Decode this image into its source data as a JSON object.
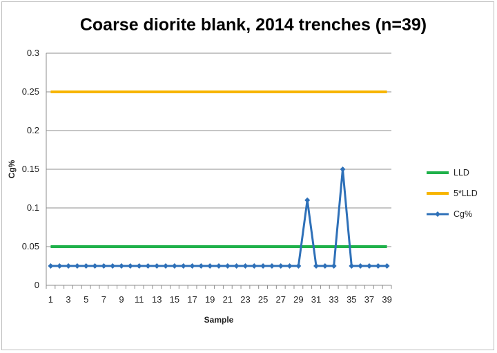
{
  "chart_data": {
    "type": "line",
    "title": "Coarse diorite blank, 2014 trenches (n=39)",
    "xlabel": "Sample",
    "ylabel": "Cg%",
    "ylim": [
      0,
      0.3
    ],
    "y_ticks": [
      "0",
      "0.05",
      "0.1",
      "0.15",
      "0.2",
      "0.25",
      "0.3"
    ],
    "x_tick_labels": [
      "1",
      "3",
      "5",
      "7",
      "9",
      "11",
      "13",
      "15",
      "17",
      "19",
      "21",
      "23",
      "25",
      "27",
      "29",
      "31",
      "33",
      "35",
      "37",
      "39"
    ],
    "grid": true,
    "legend_position": "right",
    "x": [
      1,
      2,
      3,
      4,
      5,
      6,
      7,
      8,
      9,
      10,
      11,
      12,
      13,
      14,
      15,
      16,
      17,
      18,
      19,
      20,
      21,
      22,
      23,
      24,
      25,
      26,
      27,
      28,
      29,
      30,
      31,
      32,
      33,
      34,
      35,
      36,
      37,
      38,
      39
    ],
    "series": [
      {
        "name": "LLD",
        "color": "#1fb14a",
        "marker": "none",
        "values": [
          0.05,
          0.05,
          0.05,
          0.05,
          0.05,
          0.05,
          0.05,
          0.05,
          0.05,
          0.05,
          0.05,
          0.05,
          0.05,
          0.05,
          0.05,
          0.05,
          0.05,
          0.05,
          0.05,
          0.05,
          0.05,
          0.05,
          0.05,
          0.05,
          0.05,
          0.05,
          0.05,
          0.05,
          0.05,
          0.05,
          0.05,
          0.05,
          0.05,
          0.05,
          0.05,
          0.05,
          0.05,
          0.05,
          0.05
        ]
      },
      {
        "name": "5*LLD",
        "color": "#f7b500",
        "marker": "none",
        "values": [
          0.25,
          0.25,
          0.25,
          0.25,
          0.25,
          0.25,
          0.25,
          0.25,
          0.25,
          0.25,
          0.25,
          0.25,
          0.25,
          0.25,
          0.25,
          0.25,
          0.25,
          0.25,
          0.25,
          0.25,
          0.25,
          0.25,
          0.25,
          0.25,
          0.25,
          0.25,
          0.25,
          0.25,
          0.25,
          0.25,
          0.25,
          0.25,
          0.25,
          0.25,
          0.25,
          0.25,
          0.25,
          0.25,
          0.25
        ]
      },
      {
        "name": "Cg%",
        "color": "#2e70b8",
        "marker": "diamond",
        "values": [
          0.025,
          0.025,
          0.025,
          0.025,
          0.025,
          0.025,
          0.025,
          0.025,
          0.025,
          0.025,
          0.025,
          0.025,
          0.025,
          0.025,
          0.025,
          0.025,
          0.025,
          0.025,
          0.025,
          0.025,
          0.025,
          0.025,
          0.025,
          0.025,
          0.025,
          0.025,
          0.025,
          0.025,
          0.025,
          0.11,
          0.025,
          0.025,
          0.025,
          0.15,
          0.025,
          0.025,
          0.025,
          0.025,
          0.025
        ]
      }
    ]
  }
}
